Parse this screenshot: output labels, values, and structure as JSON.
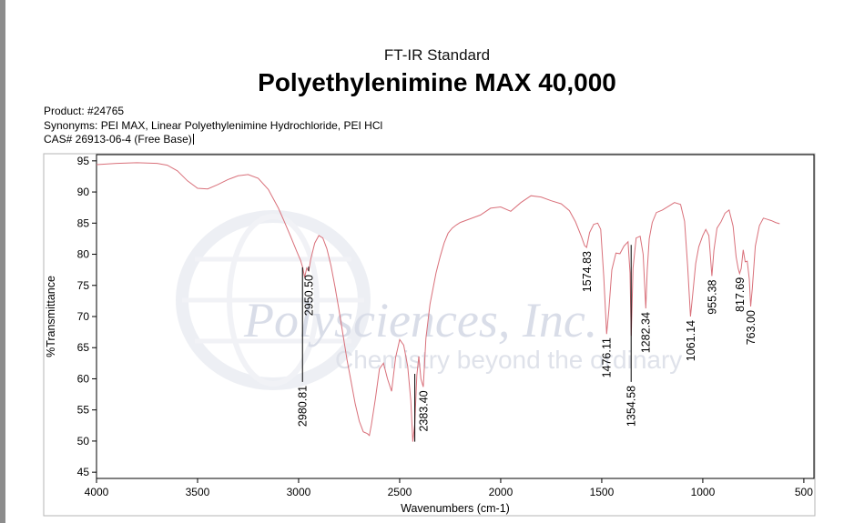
{
  "header": {
    "subtitle": "FT-IR Standard",
    "title": "Polyethylenimine MAX 40,000"
  },
  "meta": {
    "product": "Product: #24765",
    "synonyms": "Synonyms: PEI MAX, Linear Polyethylenimine Hydrochloride, PEI HCl",
    "cas": "CAS# 26913-06-4 (Free Base)"
  },
  "watermark": {
    "company": "Polysciences, Inc.",
    "tagline": "Chemistry beyond the ordinary"
  },
  "colors": {
    "spectrum": "#d9707a",
    "peak_marker": "#000000",
    "watermark": "#d9dde8"
  },
  "chart_data": {
    "type": "line",
    "xlabel": "Wavenumbers (cm-1)",
    "ylabel": "%Transmittance",
    "xlim": [
      4000,
      450
    ],
    "x_reversed": true,
    "ylim": [
      44,
      96
    ],
    "x_ticks": [
      4000,
      3500,
      3000,
      2500,
      2000,
      1500,
      1000,
      500
    ],
    "y_ticks": [
      45,
      50,
      55,
      60,
      65,
      70,
      75,
      80,
      85,
      90,
      95
    ],
    "grid": false,
    "series": [
      {
        "x": [
          4000,
          3900,
          3800,
          3700,
          3650,
          3600,
          3550,
          3500,
          3450,
          3400,
          3350,
          3300,
          3250,
          3200,
          3150,
          3100,
          3070,
          3040,
          3010,
          2990,
          2980,
          2970,
          2960,
          2950,
          2940,
          2920,
          2900,
          2880,
          2860,
          2840,
          2820,
          2800,
          2780,
          2760,
          2740,
          2720,
          2700,
          2680,
          2660,
          2650,
          2640,
          2620,
          2600,
          2580,
          2560,
          2540,
          2520,
          2500,
          2480,
          2460,
          2445,
          2435,
          2425,
          2415,
          2405,
          2395,
          2383,
          2370,
          2350,
          2320,
          2300,
          2280,
          2260,
          2240,
          2220,
          2200,
          2150,
          2100,
          2050,
          2000,
          1950,
          1900,
          1850,
          1800,
          1750,
          1700,
          1660,
          1630,
          1600,
          1585,
          1575,
          1560,
          1540,
          1520,
          1505,
          1490,
          1476,
          1465,
          1450,
          1430,
          1410,
          1390,
          1370,
          1360,
          1354,
          1345,
          1330,
          1310,
          1295,
          1282,
          1275,
          1265,
          1250,
          1230,
          1200,
          1170,
          1140,
          1110,
          1090,
          1075,
          1061,
          1050,
          1035,
          1020,
          1000,
          985,
          970,
          955,
          945,
          930,
          910,
          890,
          870,
          850,
          835,
          825,
          818,
          810,
          800,
          790,
          780,
          770,
          763,
          755,
          740,
          720,
          700,
          680,
          660,
          640,
          620
        ],
        "y": [
          94.4,
          94.6,
          94.7,
          94.6,
          94.3,
          93.4,
          91.8,
          90.6,
          90.5,
          91.2,
          92.0,
          92.6,
          92.8,
          92.2,
          90.4,
          87.4,
          85.2,
          82.9,
          80.5,
          79.0,
          77.9,
          76.3,
          77.8,
          77.3,
          79.2,
          81.8,
          83.0,
          82.6,
          80.9,
          78.2,
          74.8,
          71.0,
          67.0,
          63.0,
          59.5,
          56.0,
          53.2,
          51.5,
          51.2,
          50.9,
          52.6,
          56.8,
          61.6,
          62.5,
          60.0,
          58.0,
          63.4,
          66.3,
          65.4,
          62.0,
          56.5,
          49.9,
          52.8,
          60.5,
          63.6,
          60.0,
          58.7,
          66.5,
          72.0,
          77.0,
          79.6,
          81.8,
          83.4,
          84.2,
          84.7,
          85.1,
          85.7,
          86.3,
          87.4,
          87.6,
          86.9,
          88.3,
          89.4,
          89.2,
          88.6,
          88.1,
          87.0,
          85.2,
          82.8,
          81.4,
          81.1,
          83.5,
          84.8,
          85.0,
          84.0,
          76.5,
          67.2,
          71.0,
          77.5,
          80.2,
          80.1,
          81.3,
          82.0,
          77.0,
          66.9,
          77.8,
          82.6,
          82.9,
          80.0,
          71.3,
          77.5,
          82.5,
          85.1,
          86.7,
          87.1,
          87.7,
          88.3,
          88.0,
          85.3,
          78.0,
          70.0,
          73.5,
          78.5,
          81.2,
          83.0,
          84.0,
          83.0,
          76.5,
          80.6,
          84.2,
          85.2,
          86.6,
          87.1,
          84.5,
          79.6,
          77.7,
          76.9,
          77.7,
          80.7,
          78.8,
          78.9,
          76.0,
          71.6,
          74.5,
          81.3,
          84.6,
          85.8,
          85.6,
          85.4,
          85.1,
          84.9
        ]
      }
    ],
    "peak_labels": [
      {
        "x": 2980.81,
        "label": "2980.81",
        "line_from": 77.9,
        "line_to": 59.5
      },
      {
        "x": 2950.5,
        "label": "2950.50",
        "line_from": 78.0,
        "line_to": 77.3
      },
      {
        "x": 2383.4,
        "label": "2383.40",
        "line_from": 58.7,
        "line_to": 58.7
      },
      {
        "x": 2425.0,
        "label": "",
        "line_from": 60.8,
        "line_to": 49.9
      },
      {
        "x": 1574.83,
        "label": "1574.83",
        "line_from": 81.1,
        "line_to": 81.1
      },
      {
        "x": 1476.11,
        "label": "1476.11",
        "line_from": 67.2,
        "line_to": 67.2
      },
      {
        "x": 1354.58,
        "label": "1354.58",
        "line_from": 81.5,
        "line_to": 59.5
      },
      {
        "x": 1282.34,
        "label": "1282.34",
        "line_from": 71.3,
        "line_to": 71.3
      },
      {
        "x": 1061.14,
        "label": "1061.14",
        "line_from": 70.0,
        "line_to": 70.0
      },
      {
        "x": 955.38,
        "label": "955.38",
        "line_from": 76.5,
        "line_to": 76.5
      },
      {
        "x": 817.69,
        "label": "817.69",
        "line_from": 76.9,
        "line_to": 76.9
      },
      {
        "x": 763.0,
        "label": "763.00",
        "line_from": 71.6,
        "line_to": 71.6
      }
    ]
  }
}
